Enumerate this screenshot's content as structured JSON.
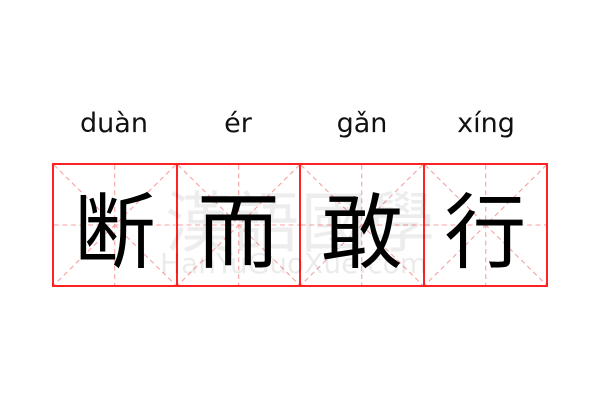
{
  "pinyin": [
    "duàn",
    "ér",
    "gǎn",
    "xíng"
  ],
  "characters": [
    "断",
    "而",
    "敢",
    "行"
  ],
  "watermark": {
    "chinese": "漢語國學",
    "latin": "HanYuGuoXue.com"
  },
  "colors": {
    "grid_border": "#ff2222",
    "guide_lines": "#f8a0a0",
    "character": "#000000"
  }
}
